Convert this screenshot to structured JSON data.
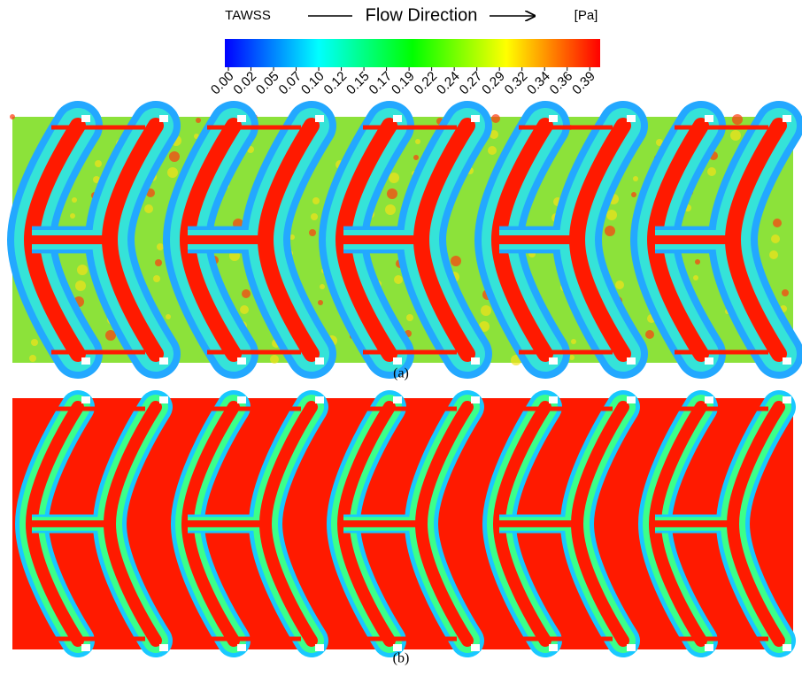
{
  "colorbar": {
    "label": "TAWSS",
    "units": "[Pa]",
    "range": [
      0,
      0.4
    ],
    "ticks": [
      {
        "value": 0,
        "label": "0.00"
      },
      {
        "value": 0.0243,
        "label": "0.02"
      },
      {
        "value": 0.0486,
        "label": "0.05"
      },
      {
        "value": 0.0729,
        "label": "0.07"
      },
      {
        "value": 0.0972,
        "label": "0.10"
      },
      {
        "value": 0.1215,
        "label": "0.12"
      },
      {
        "value": 0.1458,
        "label": "0.15"
      },
      {
        "value": 0.1701,
        "label": "0.17"
      },
      {
        "value": 0.1944,
        "label": "0.19"
      },
      {
        "value": 0.2187,
        "label": "0.22"
      },
      {
        "value": 0.243,
        "label": "0.24"
      },
      {
        "value": 0.2673,
        "label": "0.27"
      },
      {
        "value": 0.2916,
        "label": "0.29"
      },
      {
        "value": 0.3159,
        "label": "0.32"
      },
      {
        "value": 0.3402,
        "label": "0.34"
      },
      {
        "value": 0.3645,
        "label": "0.36"
      },
      {
        "value": 0.3888,
        "label": "0.39"
      }
    ]
  },
  "flow_label": "Flow Direction",
  "panels": [
    {
      "label": "(a)"
    },
    {
      "label": "(b)"
    }
  ]
}
